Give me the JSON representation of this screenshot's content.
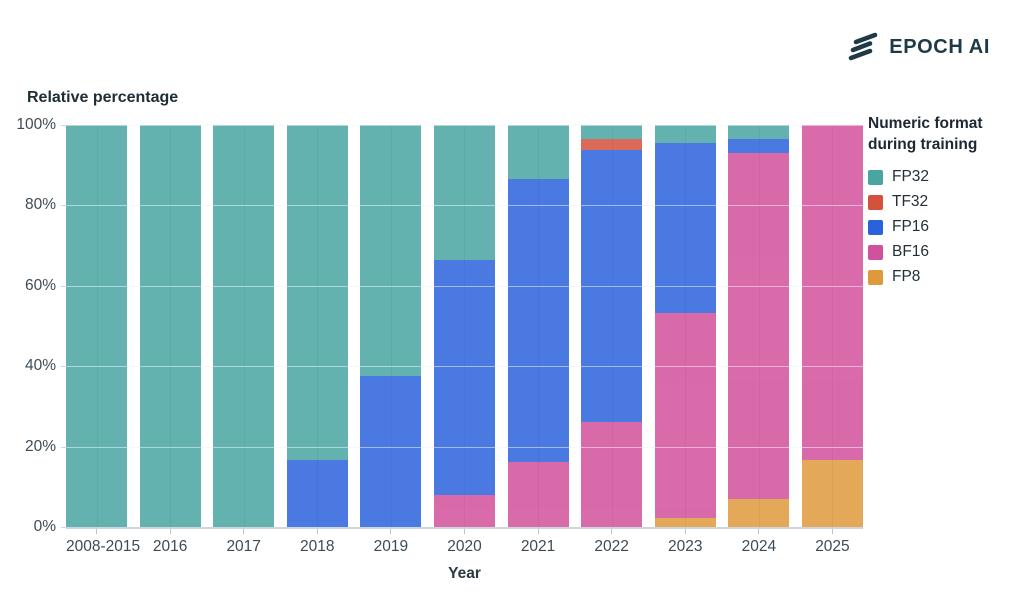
{
  "header": {
    "brand": "EPOCH AI",
    "brand_color": "#1d3a46",
    "logo_icon": "epoch-slashes-icon"
  },
  "chart_data": {
    "type": "bar",
    "stacked": true,
    "title": "Relative percentage",
    "xlabel": "Year",
    "legend_title": "Numeric format during training",
    "legend_position": "right",
    "grid": true,
    "ylim": [
      0,
      100
    ],
    "yticks": [
      "0%",
      "20%",
      "40%",
      "60%",
      "80%",
      "100%"
    ],
    "categories": [
      "2008-2015",
      "2016",
      "2017",
      "2018",
      "2019",
      "2020",
      "2021",
      "2022",
      "2023",
      "2024",
      "2025"
    ],
    "series": [
      {
        "name": "FP8",
        "color": "#DF993C",
        "values": [
          0,
          0,
          0,
          0,
          0,
          0,
          0,
          0,
          2.2,
          7.0,
          16.7
        ]
      },
      {
        "name": "BF16",
        "color": "#D2519C",
        "values": [
          0,
          0,
          0,
          0,
          0,
          8.0,
          16.2,
          26.1,
          51.0,
          86.0,
          83.3
        ]
      },
      {
        "name": "FP16",
        "color": "#2A62DC",
        "values": [
          0,
          0,
          0,
          16.7,
          37.5,
          58.4,
          70.3,
          67.7,
          42.3,
          3.5,
          0
        ]
      },
      {
        "name": "TF32",
        "color": "#D4523C",
        "values": [
          0,
          0,
          0,
          0,
          0,
          0,
          0,
          2.7,
          0,
          0,
          0
        ]
      },
      {
        "name": "FP32",
        "color": "#48A5A2",
        "values": [
          100,
          100,
          100,
          83.3,
          62.5,
          33.6,
          13.5,
          3.5,
          4.5,
          3.5,
          0
        ]
      }
    ],
    "legend_order": [
      "FP32",
      "TF32",
      "FP16",
      "BF16",
      "FP8"
    ]
  }
}
